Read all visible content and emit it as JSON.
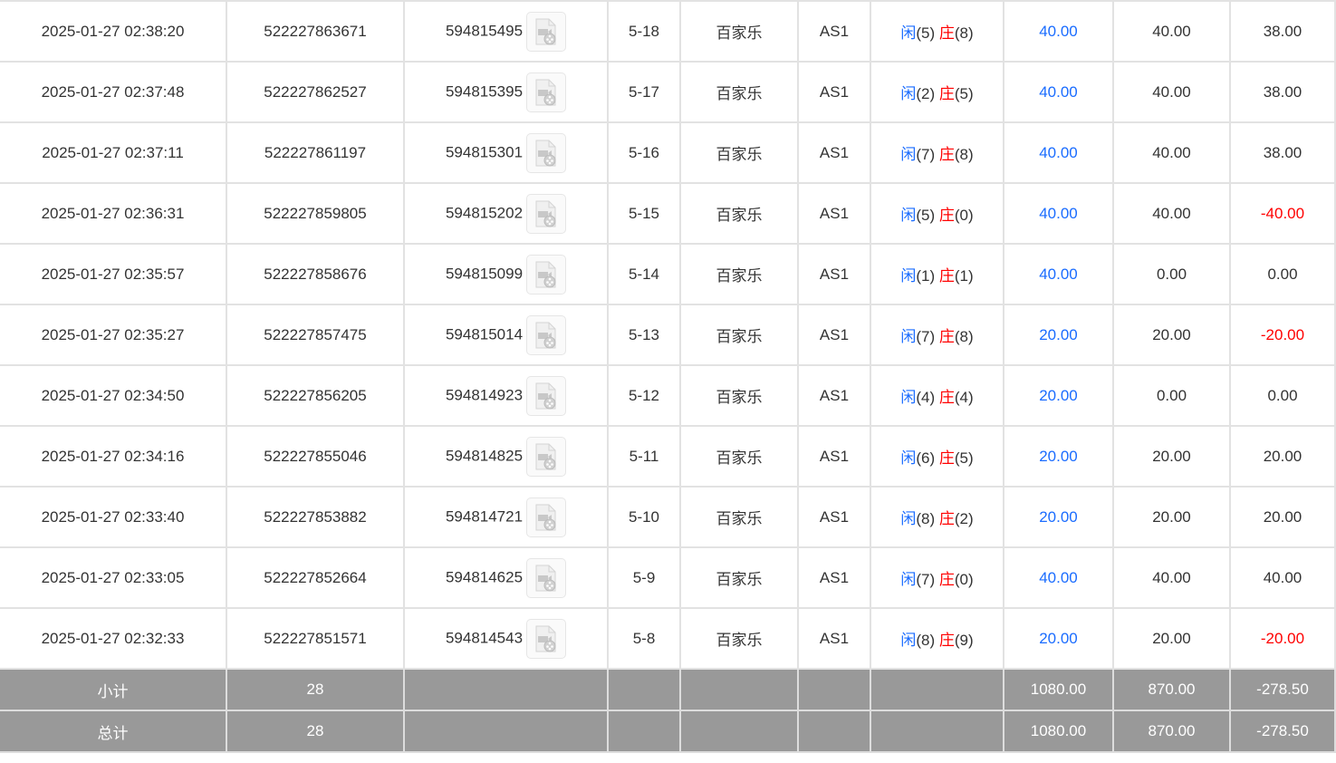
{
  "icon": "video-file-icon",
  "colors": {
    "accent_blue": "#1a6cff",
    "negative_red": "#ff0000",
    "footer_bg": "#999999"
  },
  "rows": [
    {
      "time": "2025-01-27 02:38:20",
      "order_id": "522227863671",
      "round_id": "594815495",
      "shoe": "5-18",
      "game": "百家乐",
      "table": "AS1",
      "player_label": "闲",
      "player_val": "(5)",
      "banker_label": "庄",
      "banker_val": "(8)",
      "bet": "40.00",
      "valid": "40.00",
      "win": "38.00"
    },
    {
      "time": "2025-01-27 02:37:48",
      "order_id": "522227862527",
      "round_id": "594815395",
      "shoe": "5-17",
      "game": "百家乐",
      "table": "AS1",
      "player_label": "闲",
      "player_val": "(2)",
      "banker_label": "庄",
      "banker_val": "(5)",
      "bet": "40.00",
      "valid": "40.00",
      "win": "38.00"
    },
    {
      "time": "2025-01-27 02:37:11",
      "order_id": "522227861197",
      "round_id": "594815301",
      "shoe": "5-16",
      "game": "百家乐",
      "table": "AS1",
      "player_label": "闲",
      "player_val": "(7)",
      "banker_label": "庄",
      "banker_val": "(8)",
      "bet": "40.00",
      "valid": "40.00",
      "win": "38.00"
    },
    {
      "time": "2025-01-27 02:36:31",
      "order_id": "522227859805",
      "round_id": "594815202",
      "shoe": "5-15",
      "game": "百家乐",
      "table": "AS1",
      "player_label": "闲",
      "player_val": "(5)",
      "banker_label": "庄",
      "banker_val": "(0)",
      "bet": "40.00",
      "valid": "40.00",
      "win": "-40.00"
    },
    {
      "time": "2025-01-27 02:35:57",
      "order_id": "522227858676",
      "round_id": "594815099",
      "shoe": "5-14",
      "game": "百家乐",
      "table": "AS1",
      "player_label": "闲",
      "player_val": "(1)",
      "banker_label": "庄",
      "banker_val": "(1)",
      "bet": "40.00",
      "valid": "0.00",
      "win": "0.00"
    },
    {
      "time": "2025-01-27 02:35:27",
      "order_id": "522227857475",
      "round_id": "594815014",
      "shoe": "5-13",
      "game": "百家乐",
      "table": "AS1",
      "player_label": "闲",
      "player_val": "(7)",
      "banker_label": "庄",
      "banker_val": "(8)",
      "bet": "20.00",
      "valid": "20.00",
      "win": "-20.00"
    },
    {
      "time": "2025-01-27 02:34:50",
      "order_id": "522227856205",
      "round_id": "594814923",
      "shoe": "5-12",
      "game": "百家乐",
      "table": "AS1",
      "player_label": "闲",
      "player_val": "(4)",
      "banker_label": "庄",
      "banker_val": "(4)",
      "bet": "20.00",
      "valid": "0.00",
      "win": "0.00"
    },
    {
      "time": "2025-01-27 02:34:16",
      "order_id": "522227855046",
      "round_id": "594814825",
      "shoe": "5-11",
      "game": "百家乐",
      "table": "AS1",
      "player_label": "闲",
      "player_val": "(6)",
      "banker_label": "庄",
      "banker_val": "(5)",
      "bet": "20.00",
      "valid": "20.00",
      "win": "20.00"
    },
    {
      "time": "2025-01-27 02:33:40",
      "order_id": "522227853882",
      "round_id": "594814721",
      "shoe": "5-10",
      "game": "百家乐",
      "table": "AS1",
      "player_label": "闲",
      "player_val": "(8)",
      "banker_label": "庄",
      "banker_val": "(2)",
      "bet": "20.00",
      "valid": "20.00",
      "win": "20.00"
    },
    {
      "time": "2025-01-27 02:33:05",
      "order_id": "522227852664",
      "round_id": "594814625",
      "shoe": "5-9",
      "game": "百家乐",
      "table": "AS1",
      "player_label": "闲",
      "player_val": "(7)",
      "banker_label": "庄",
      "banker_val": "(0)",
      "bet": "40.00",
      "valid": "40.00",
      "win": "40.00"
    },
    {
      "time": "2025-01-27 02:32:33",
      "order_id": "522227851571",
      "round_id": "594814543",
      "shoe": "5-8",
      "game": "百家乐",
      "table": "AS1",
      "player_label": "闲",
      "player_val": "(8)",
      "banker_label": "庄",
      "banker_val": "(9)",
      "bet": "20.00",
      "valid": "20.00",
      "win": "-20.00"
    }
  ],
  "subtotal": {
    "label": "小计",
    "count": "28",
    "bet": "1080.00",
    "valid": "870.00",
    "win": "-278.50"
  },
  "total": {
    "label": "总计",
    "count": "28",
    "bet": "1080.00",
    "valid": "870.00",
    "win": "-278.50"
  }
}
